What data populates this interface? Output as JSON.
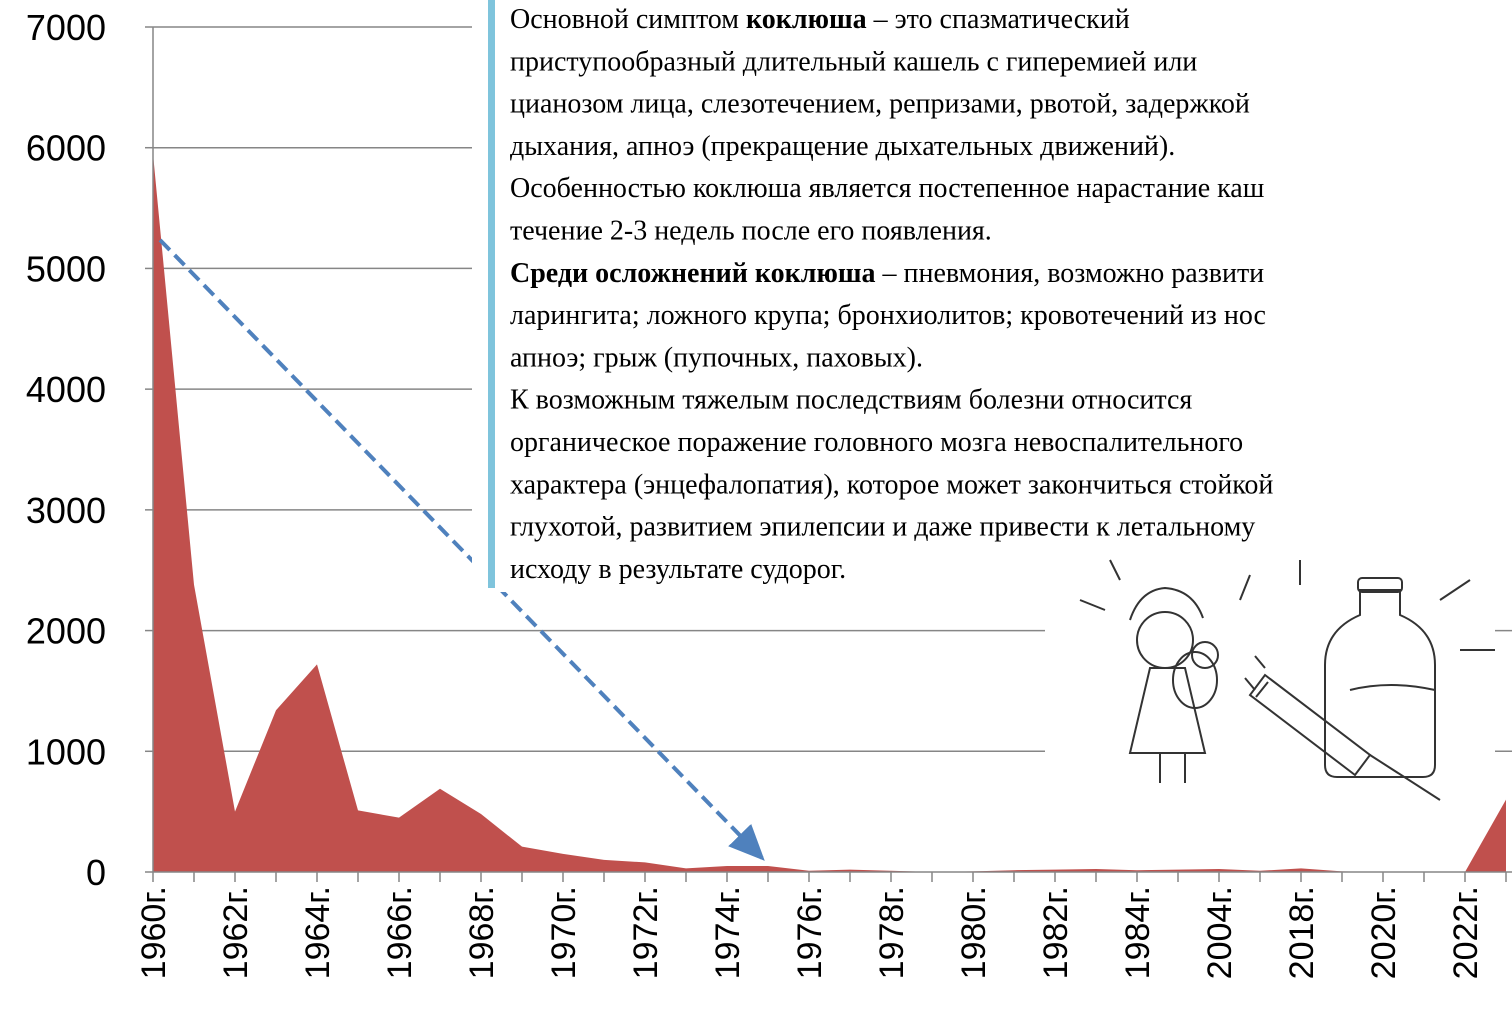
{
  "chart_data": {
    "type": "area",
    "categories": [
      "1960г.",
      null,
      "1962г.",
      null,
      "1964г.",
      null,
      "1966г.",
      null,
      "1968г.",
      null,
      "1970г.",
      null,
      "1972г.",
      null,
      "1974г.",
      null,
      "1976г.",
      null,
      "1978г.",
      null,
      "1980г.",
      null,
      "1982г.",
      null,
      "1984г.",
      null,
      "2004г.",
      null,
      "2018г.",
      null,
      "2020г.",
      null,
      "2022г.",
      null
    ],
    "values": [
      5950,
      2380,
      500,
      1340,
      1720,
      510,
      450,
      690,
      480,
      210,
      150,
      100,
      80,
      30,
      50,
      50,
      10,
      20,
      10,
      0,
      5,
      15,
      20,
      25,
      15,
      20,
      25,
      10,
      30,
      5,
      0,
      0,
      0,
      600
    ],
    "color": "#c0504d",
    "ylim": [
      0,
      7000
    ],
    "yticks": [
      0,
      1000,
      2000,
      3000,
      4000,
      5000,
      6000,
      7000
    ],
    "grid": true
  },
  "text": {
    "lines": [
      [
        {
          "text": "Основной симптом "
        },
        {
          "text": "коклюша",
          "bold": true
        },
        {
          "text": " – это спазматический"
        }
      ],
      [
        {
          "text": "приступообразный длительный кашель с гиперемией или"
        }
      ],
      [
        {
          "text": "цианозом лица, слезотечением, репризами, рвотой, задержкой"
        }
      ],
      [
        {
          "text": "дыхания, апноэ (прекращение дыхательных движений)."
        }
      ],
      [
        {
          "text": "Особенностью коклюша является постепенное нарастание каш"
        }
      ],
      [
        {
          "text": "течение 2-3 недель после его появления."
        }
      ],
      [
        {
          "text": "Среди осложнений коклюша",
          "bold": true
        },
        {
          "text": " – пневмония, возможно развити"
        }
      ],
      [
        {
          "text": "ларингита; ложного крупа; бронхиолитов; кровотечений из нос"
        }
      ],
      [
        {
          "text": "апноэ; грыж (пупочных, паховых)."
        }
      ],
      [
        {
          "text": "К возможным тяжелым последствиям болезни относится"
        }
      ],
      [
        {
          "text": "органическое поражение головного мозга невоспалительного"
        }
      ],
      [
        {
          "text": "характера (энцефалопатия), которое может закончиться стойкой"
        }
      ],
      [
        {
          "text": "глухотой, развитием эпилепсии и даже привести к летальному"
        }
      ],
      [
        {
          "text": "исходу в результате судорог."
        }
      ]
    ]
  }
}
